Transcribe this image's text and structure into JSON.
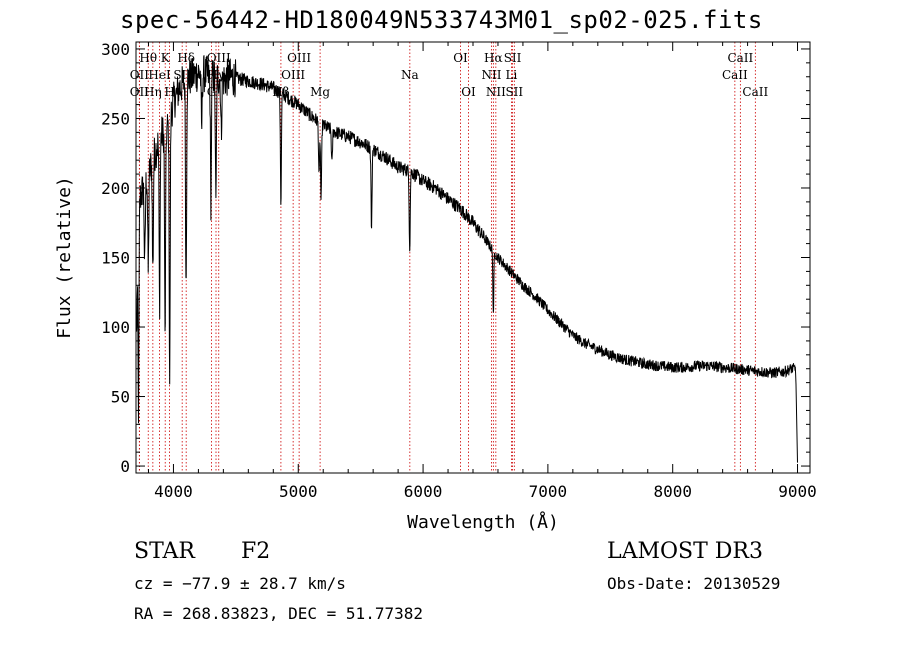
{
  "title": "spec-56442-HD180049N533743M01_sp02-025.fits",
  "info": {
    "obj_class": "STAR",
    "subclass": "F2",
    "survey": "LAMOST DR3",
    "cz": "cz = −77.9 ± 28.7 km/s",
    "obs_date": "Obs-Date: 20130529",
    "coords": "RA = 268.83823, DEC =  51.77382"
  },
  "chart_data": {
    "type": "line",
    "title": "spec-56442-HD180049N533743M01_sp02-025.fits",
    "xlabel": "Wavelength (Å)",
    "ylabel": "Flux (relative)",
    "xlim": [
      3700,
      9100
    ],
    "ylim": [
      -5,
      305
    ],
    "xticks": [
      4000,
      5000,
      6000,
      7000,
      8000,
      9000
    ],
    "yticks": [
      0,
      50,
      100,
      150,
      200,
      250,
      300
    ],
    "continuum": [
      [
        3700,
        60
      ],
      [
        3720,
        190
      ],
      [
        3760,
        200
      ],
      [
        3800,
        210
      ],
      [
        3850,
        225
      ],
      [
        3900,
        238
      ],
      [
        3950,
        242
      ],
      [
        4000,
        262
      ],
      [
        4050,
        272
      ],
      [
        4100,
        278
      ],
      [
        4150,
        280
      ],
      [
        4200,
        283
      ],
      [
        4250,
        282
      ],
      [
        4300,
        280
      ],
      [
        4350,
        280
      ],
      [
        4400,
        278
      ],
      [
        4450,
        280
      ],
      [
        4500,
        279
      ],
      [
        4600,
        277
      ],
      [
        4700,
        275
      ],
      [
        4800,
        272
      ],
      [
        4900,
        266
      ],
      [
        5000,
        260
      ],
      [
        5100,
        252
      ],
      [
        5200,
        245
      ],
      [
        5300,
        240
      ],
      [
        5400,
        237
      ],
      [
        5500,
        233
      ],
      [
        5600,
        228
      ],
      [
        5700,
        222
      ],
      [
        5800,
        215
      ],
      [
        5900,
        212
      ],
      [
        6000,
        205
      ],
      [
        6100,
        200
      ],
      [
        6200,
        192
      ],
      [
        6300,
        185
      ],
      [
        6400,
        175
      ],
      [
        6500,
        163
      ],
      [
        6600,
        150
      ],
      [
        6700,
        140
      ],
      [
        6800,
        130
      ],
      [
        6900,
        122
      ],
      [
        7000,
        112
      ],
      [
        7100,
        103
      ],
      [
        7200,
        94
      ],
      [
        7300,
        88
      ],
      [
        7400,
        84
      ],
      [
        7500,
        80
      ],
      [
        7600,
        77
      ],
      [
        7700,
        75
      ],
      [
        7800,
        73
      ],
      [
        7900,
        72
      ],
      [
        8000,
        71
      ],
      [
        8100,
        71
      ],
      [
        8200,
        72
      ],
      [
        8300,
        72
      ],
      [
        8400,
        71
      ],
      [
        8500,
        70
      ],
      [
        8600,
        69
      ],
      [
        8700,
        68
      ],
      [
        8800,
        67
      ],
      [
        8900,
        68
      ],
      [
        8950,
        70
      ],
      [
        9000,
        70
      ]
    ],
    "absorption_lines": [
      {
        "w": 3720,
        "depth": 150
      },
      {
        "w": 3770,
        "depth": 60
      },
      {
        "w": 3798,
        "depth": 70
      },
      {
        "w": 3835,
        "depth": 80
      },
      {
        "w": 3889,
        "depth": 120
      },
      {
        "w": 3933,
        "depth": 150
      },
      {
        "w": 3970,
        "depth": 190
      },
      {
        "w": 4101,
        "depth": 150
      },
      {
        "w": 4226,
        "depth": 40
      },
      {
        "w": 4300,
        "depth": 90
      },
      {
        "w": 4340,
        "depth": 95
      },
      {
        "w": 4383,
        "depth": 40
      },
      {
        "w": 4861,
        "depth": 80
      },
      {
        "w": 5167,
        "depth": 40
      },
      {
        "w": 5183,
        "depth": 55
      },
      {
        "w": 5270,
        "depth": 25
      },
      {
        "w": 5587,
        "depth": 60
      },
      {
        "w": 5893,
        "depth": 55
      },
      {
        "w": 6563,
        "depth": 45
      }
    ],
    "spectral_lines": [
      {
        "label": "OII",
        "w": 3727,
        "row": 1
      },
      {
        "label": "OII",
        "w": 3727,
        "row": 2
      },
      {
        "label": "Hθ",
        "w": 3798,
        "row": 0
      },
      {
        "label": "Hη",
        "w": 3835,
        "row": 2
      },
      {
        "label": "HeI",
        "w": 3889,
        "row": 1
      },
      {
        "label": "K",
        "w": 3934,
        "row": 0
      },
      {
        "label": "H",
        "w": 3969,
        "row": 2
      },
      {
        "label": "SII",
        "w": 4070,
        "row": 1
      },
      {
        "label": "Hδ",
        "w": 4102,
        "row": 0
      },
      {
        "label": "G",
        "w": 4305,
        "row": 2
      },
      {
        "label": "Hγ",
        "w": 4341,
        "row": 1
      },
      {
        "label": "OIII",
        "w": 4363,
        "row": 0
      },
      {
        "label": "Hβ",
        "w": 4861,
        "row": 2
      },
      {
        "label": "OIII",
        "w": 4959,
        "row": 1
      },
      {
        "label": "OIII",
        "w": 5007,
        "row": 0
      },
      {
        "label": "Mg",
        "w": 5175,
        "row": 2
      },
      {
        "label": "Na",
        "w": 5894,
        "row": 1
      },
      {
        "label": "OI",
        "w": 6300,
        "row": 0
      },
      {
        "label": "OI",
        "w": 6364,
        "row": 2
      },
      {
        "label": "NII",
        "w": 6548,
        "row": 1
      },
      {
        "label": "Hα",
        "w": 6563,
        "row": 0
      },
      {
        "label": "NII",
        "w": 6583,
        "row": 2
      },
      {
        "label": "Li",
        "w": 6708,
        "row": 1
      },
      {
        "label": "SII",
        "w": 6717,
        "row": 0
      },
      {
        "label": "SII",
        "w": 6731,
        "row": 2
      },
      {
        "label": "CaII",
        "w": 8498,
        "row": 1
      },
      {
        "label": "CaII",
        "w": 8542,
        "row": 0
      },
      {
        "label": "CaII",
        "w": 8662,
        "row": 2
      }
    ]
  }
}
